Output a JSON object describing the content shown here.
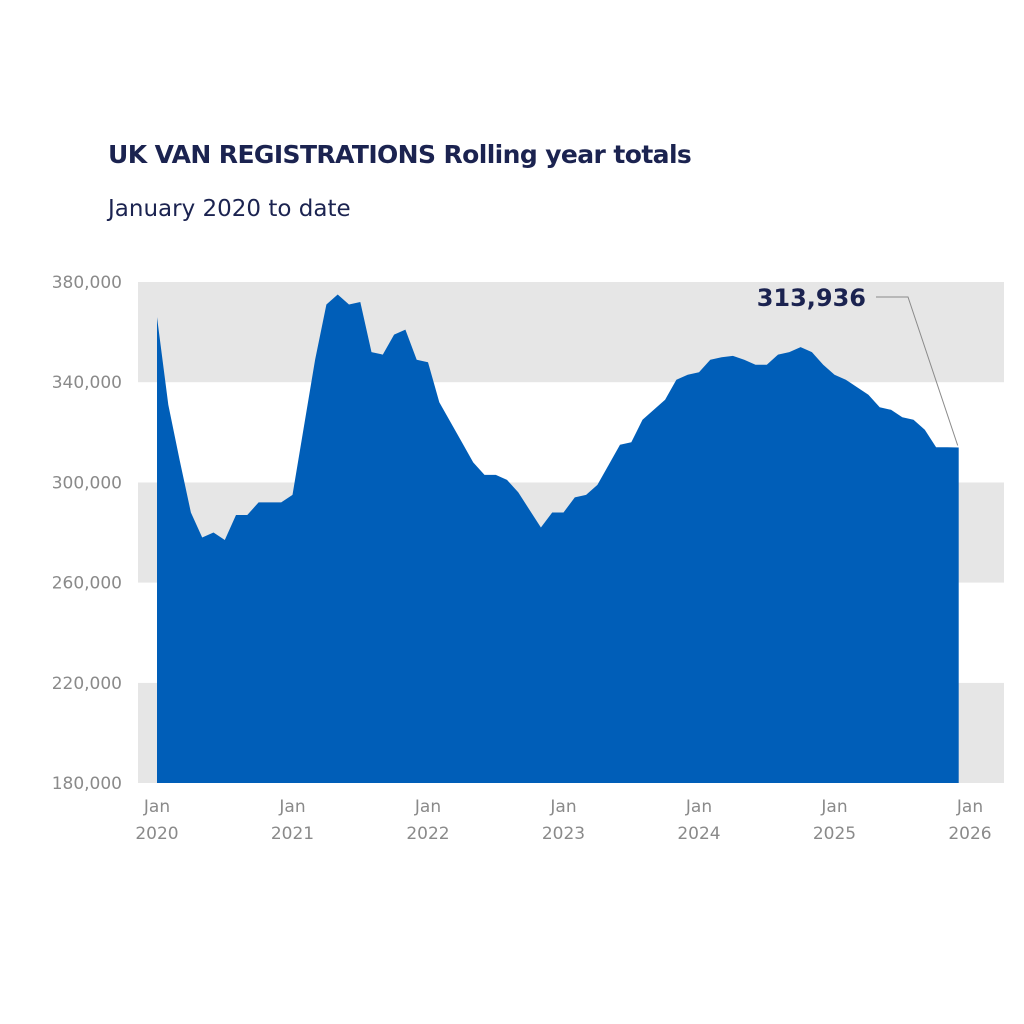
{
  "chart_data": {
    "type": "area",
    "title": "UK VAN REGISTRATIONS Rolling year totals",
    "subtitle": "January 2020 to date",
    "xlabel": "",
    "ylabel": "",
    "ylim": [
      180000,
      380000
    ],
    "yticks": [
      180000,
      220000,
      260000,
      300000,
      340000,
      380000
    ],
    "ytick_labels": [
      "180,000",
      "220,000",
      "260,000",
      "300,000",
      "340,000",
      "380,000"
    ],
    "grid": "alternating horizontal bands",
    "xticks": [
      {
        "date": "2020-01",
        "line1": "Jan",
        "line2": "2020"
      },
      {
        "date": "2021-01",
        "line1": "Jan",
        "line2": "2021"
      },
      {
        "date": "2022-01",
        "line1": "Jan",
        "line2": "2022"
      },
      {
        "date": "2023-01",
        "line1": "Jan",
        "line2": "2023"
      },
      {
        "date": "2024-01",
        "line1": "Jan",
        "line2": "2024"
      },
      {
        "date": "2025-01",
        "line1": "Jan",
        "line2": "2025"
      },
      {
        "date": "2026-01",
        "line1": "Jan",
        "line2": "2026"
      }
    ],
    "series": [
      {
        "color": "#005eb8",
        "points": [
          [
            "2020-01",
            366000
          ],
          [
            "2020-02",
            331000
          ],
          [
            "2020-03",
            309000
          ],
          [
            "2020-04",
            288000
          ],
          [
            "2020-05",
            278000
          ],
          [
            "2020-06",
            280000
          ],
          [
            "2020-07",
            277000
          ],
          [
            "2020-08",
            287000
          ],
          [
            "2020-09",
            287000
          ],
          [
            "2020-10",
            292000
          ],
          [
            "2020-11",
            292000
          ],
          [
            "2020-12",
            292000
          ],
          [
            "2021-01",
            295000
          ],
          [
            "2021-02",
            322000
          ],
          [
            "2021-03",
            349000
          ],
          [
            "2021-04",
            371000
          ],
          [
            "2021-05",
            375000
          ],
          [
            "2021-06",
            371000
          ],
          [
            "2021-07",
            372000
          ],
          [
            "2021-08",
            352000
          ],
          [
            "2021-09",
            351000
          ],
          [
            "2021-10",
            359000
          ],
          [
            "2021-11",
            361000
          ],
          [
            "2021-12",
            349000
          ],
          [
            "2022-01",
            348000
          ],
          [
            "2022-02",
            332000
          ],
          [
            "2022-03",
            324000
          ],
          [
            "2022-04",
            316000
          ],
          [
            "2022-05",
            308000
          ],
          [
            "2022-06",
            303000
          ],
          [
            "2022-07",
            303000
          ],
          [
            "2022-08",
            301000
          ],
          [
            "2022-09",
            296000
          ],
          [
            "2022-10",
            289000
          ],
          [
            "2022-11",
            282000
          ],
          [
            "2022-12",
            288000
          ],
          [
            "2023-01",
            288000
          ],
          [
            "2023-02",
            294000
          ],
          [
            "2023-03",
            295000
          ],
          [
            "2023-04",
            299000
          ],
          [
            "2023-05",
            307000
          ],
          [
            "2023-06",
            315000
          ],
          [
            "2023-07",
            316000
          ],
          [
            "2023-08",
            325000
          ],
          [
            "2023-09",
            329000
          ],
          [
            "2023-10",
            333000
          ],
          [
            "2023-11",
            341000
          ],
          [
            "2023-12",
            343000
          ],
          [
            "2024-01",
            344000
          ],
          [
            "2024-02",
            349000
          ],
          [
            "2024-03",
            350000
          ],
          [
            "2024-04",
            350500
          ],
          [
            "2024-05",
            349000
          ],
          [
            "2024-06",
            347000
          ],
          [
            "2024-07",
            347000
          ],
          [
            "2024-08",
            351000
          ],
          [
            "2024-09",
            352000
          ],
          [
            "2024-10",
            354000
          ],
          [
            "2024-11",
            352000
          ],
          [
            "2024-12",
            347000
          ],
          [
            "2025-01",
            343000
          ],
          [
            "2025-02",
            341000
          ],
          [
            "2025-03",
            338000
          ],
          [
            "2025-04",
            335000
          ],
          [
            "2025-05",
            330000
          ],
          [
            "2025-06",
            329000
          ],
          [
            "2025-07",
            326000
          ],
          [
            "2025-08",
            325000
          ],
          [
            "2025-09",
            321000
          ],
          [
            "2025-10",
            314000
          ],
          [
            "2025-11",
            314000
          ],
          [
            "2025-12",
            313936
          ]
        ]
      }
    ],
    "annotations": [
      {
        "text": "313,936",
        "target": [
          "2025-12",
          313936
        ]
      }
    ]
  }
}
